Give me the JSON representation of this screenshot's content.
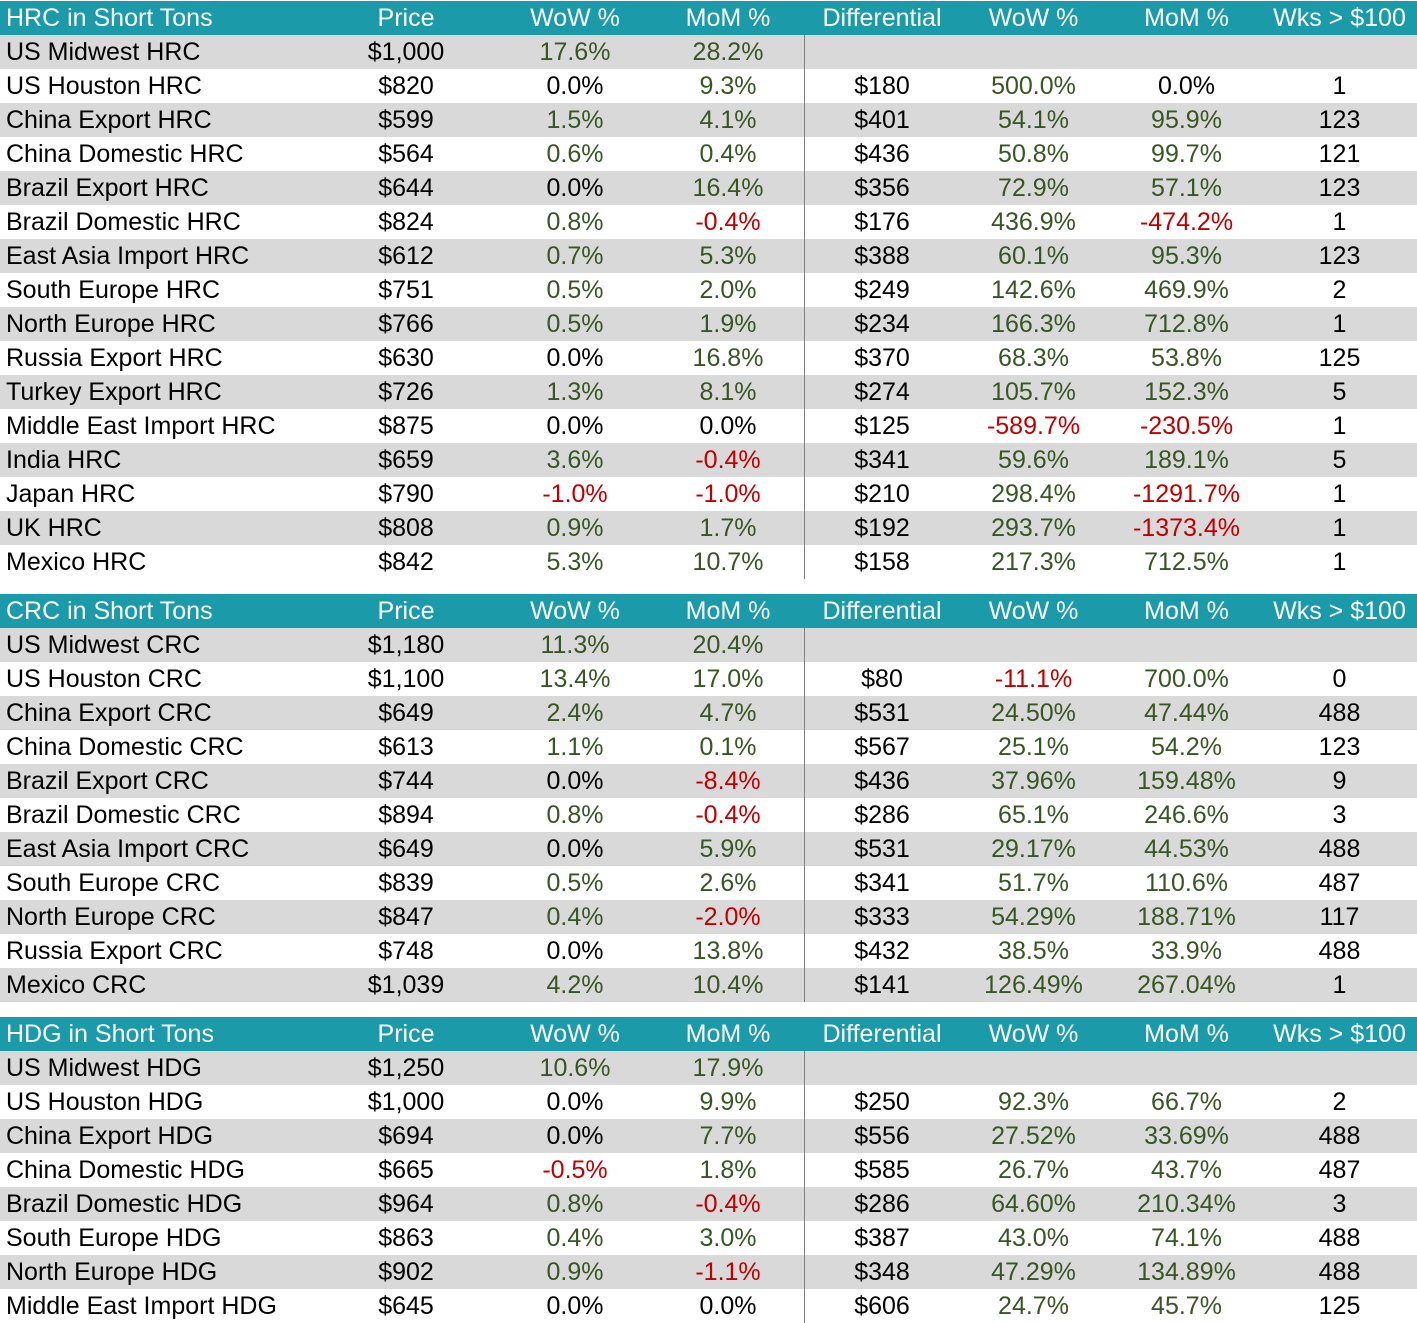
{
  "columns": [
    "Price",
    "WoW %",
    "MoM %",
    "Differential",
    "WoW %",
    "MoM %",
    "Wks > $100"
  ],
  "sections": [
    {
      "title": "HRC in Short Tons",
      "header": [
        "Price",
        "WoW %",
        "MoM %",
        "Differential",
        "WoW %",
        "MoM %",
        "Wks > $100"
      ],
      "rows": [
        {
          "name": "US Midwest HRC",
          "price": "$1,000",
          "wow": "17.6%",
          "mom": "28.2%",
          "diff": "",
          "dwow": "",
          "dmom": "",
          "wks": ""
        },
        {
          "name": "US Houston HRC",
          "price": "$820",
          "wow": "0.0%",
          "mom": "9.3%",
          "diff": "$180",
          "dwow": "500.0%",
          "dmom": "0.0%",
          "wks": "1"
        },
        {
          "name": "China Export HRC",
          "price": "$599",
          "wow": "1.5%",
          "mom": "4.1%",
          "diff": "$401",
          "dwow": "54.1%",
          "dmom": "95.9%",
          "wks": "123"
        },
        {
          "name": "China Domestic HRC",
          "price": "$564",
          "wow": "0.6%",
          "mom": "0.4%",
          "diff": "$436",
          "dwow": "50.8%",
          "dmom": "99.7%",
          "wks": "121"
        },
        {
          "name": "Brazil Export HRC",
          "price": "$644",
          "wow": "0.0%",
          "mom": "16.4%",
          "diff": "$356",
          "dwow": "72.9%",
          "dmom": "57.1%",
          "wks": "123"
        },
        {
          "name": "Brazil Domestic HRC",
          "price": "$824",
          "wow": "0.8%",
          "mom": "-0.4%",
          "diff": "$176",
          "dwow": "436.9%",
          "dmom": "-474.2%",
          "wks": "1"
        },
        {
          "name": "East Asia Import HRC",
          "price": "$612",
          "wow": "0.7%",
          "mom": "5.3%",
          "diff": "$388",
          "dwow": "60.1%",
          "dmom": "95.3%",
          "wks": "123"
        },
        {
          "name": "South Europe HRC",
          "price": "$751",
          "wow": "0.5%",
          "mom": "2.0%",
          "diff": "$249",
          "dwow": "142.6%",
          "dmom": "469.9%",
          "wks": "2"
        },
        {
          "name": "North Europe HRC",
          "price": "$766",
          "wow": "0.5%",
          "mom": "1.9%",
          "diff": "$234",
          "dwow": "166.3%",
          "dmom": "712.8%",
          "wks": "1"
        },
        {
          "name": "Russia Export HRC",
          "price": "$630",
          "wow": "0.0%",
          "mom": "16.8%",
          "diff": "$370",
          "dwow": "68.3%",
          "dmom": "53.8%",
          "wks": "125"
        },
        {
          "name": "Turkey Export HRC",
          "price": "$726",
          "wow": "1.3%",
          "mom": "8.1%",
          "diff": "$274",
          "dwow": "105.7%",
          "dmom": "152.3%",
          "wks": "5"
        },
        {
          "name": "Middle East Import HRC",
          "price": "$875",
          "wow": "0.0%",
          "mom": "0.0%",
          "diff": "$125",
          "dwow": "-589.7%",
          "dmom": "-230.5%",
          "wks": "1"
        },
        {
          "name": "India HRC",
          "price": "$659",
          "wow": "3.6%",
          "mom": "-0.4%",
          "diff": "$341",
          "dwow": "59.6%",
          "dmom": "189.1%",
          "wks": "5"
        },
        {
          "name": "Japan HRC",
          "price": "$790",
          "wow": "-1.0%",
          "mom": "-1.0%",
          "diff": "$210",
          "dwow": "298.4%",
          "dmom": "-1291.7%",
          "wks": "1"
        },
        {
          "name": "UK HRC",
          "price": "$808",
          "wow": "0.9%",
          "mom": "1.7%",
          "diff": "$192",
          "dwow": "293.7%",
          "dmom": "-1373.4%",
          "wks": "1"
        },
        {
          "name": "Mexico HRC",
          "price": "$842",
          "wow": "5.3%",
          "mom": "10.7%",
          "diff": "$158",
          "dwow": "217.3%",
          "dmom": "712.5%",
          "wks": "1"
        }
      ]
    },
    {
      "title": "CRC in Short Tons",
      "header": [
        "Price",
        "WoW %",
        "MoM %",
        "Differential",
        "WoW %",
        "MoM %",
        "Wks > $100"
      ],
      "rows": [
        {
          "name": "US Midwest CRC",
          "price": "$1,180",
          "wow": "11.3%",
          "mom": "20.4%",
          "diff": "",
          "dwow": "",
          "dmom": "",
          "wks": ""
        },
        {
          "name": "US Houston CRC",
          "price": "$1,100",
          "wow": "13.4%",
          "mom": "17.0%",
          "diff": "$80",
          "dwow": "-11.1%",
          "dmom": "700.0%",
          "wks": "0"
        },
        {
          "name": "China Export CRC",
          "price": "$649",
          "wow": "2.4%",
          "mom": "4.7%",
          "diff": "$531",
          "dwow": "24.50%",
          "dmom": "47.44%",
          "wks": "488"
        },
        {
          "name": "China Domestic CRC",
          "price": "$613",
          "wow": "1.1%",
          "mom": "0.1%",
          "diff": "$567",
          "dwow": "25.1%",
          "dmom": "54.2%",
          "wks": "123"
        },
        {
          "name": "Brazil Export CRC",
          "price": "$744",
          "wow": "0.0%",
          "mom": "-8.4%",
          "diff": "$436",
          "dwow": "37.96%",
          "dmom": "159.48%",
          "wks": "9"
        },
        {
          "name": "Brazil Domestic CRC",
          "price": "$894",
          "wow": "0.8%",
          "mom": "-0.4%",
          "diff": "$286",
          "dwow": "65.1%",
          "dmom": "246.6%",
          "wks": "3"
        },
        {
          "name": "East Asia Import CRC",
          "price": "$649",
          "wow": "0.0%",
          "mom": "5.9%",
          "diff": "$531",
          "dwow": "29.17%",
          "dmom": "44.53%",
          "wks": "488"
        },
        {
          "name": "South Europe CRC",
          "price": "$839",
          "wow": "0.5%",
          "mom": "2.6%",
          "diff": "$341",
          "dwow": "51.7%",
          "dmom": "110.6%",
          "wks": "487"
        },
        {
          "name": "North Europe CRC",
          "price": "$847",
          "wow": "0.4%",
          "mom": "-2.0%",
          "diff": "$333",
          "dwow": "54.29%",
          "dmom": "188.71%",
          "wks": "117"
        },
        {
          "name": "Russia Export CRC",
          "price": "$748",
          "wow": "0.0%",
          "mom": "13.8%",
          "diff": "$432",
          "dwow": "38.5%",
          "dmom": "33.9%",
          "wks": "488"
        },
        {
          "name": "Mexico CRC",
          "price": "$1,039",
          "wow": "4.2%",
          "mom": "10.4%",
          "diff": "$141",
          "dwow": "126.49%",
          "dmom": "267.04%",
          "wks": "1"
        }
      ]
    },
    {
      "title": "HDG in Short Tons",
      "header": [
        "Price",
        "WoW %",
        "MoM %",
        "Differential",
        "WoW %",
        "MoM %",
        "Wks > $100"
      ],
      "rows": [
        {
          "name": "US Midwest HDG",
          "price": "$1,250",
          "wow": "10.6%",
          "mom": "17.9%",
          "diff": "",
          "dwow": "",
          "dmom": "",
          "wks": ""
        },
        {
          "name": "US Houston HDG",
          "price": "$1,000",
          "wow": "0.0%",
          "mom": "9.9%",
          "diff": "$250",
          "dwow": "92.3%",
          "dmom": "66.7%",
          "wks": "2"
        },
        {
          "name": "China Export HDG",
          "price": "$694",
          "wow": "0.0%",
          "mom": "7.7%",
          "diff": "$556",
          "dwow": "27.52%",
          "dmom": "33.69%",
          "wks": "488"
        },
        {
          "name": "China Domestic HDG",
          "price": "$665",
          "wow": "-0.5%",
          "mom": "1.8%",
          "diff": "$585",
          "dwow": "26.7%",
          "dmom": "43.7%",
          "wks": "487"
        },
        {
          "name": "Brazil Domestic HDG",
          "price": "$964",
          "wow": "0.8%",
          "mom": "-0.4%",
          "diff": "$286",
          "dwow": "64.60%",
          "dmom": "210.34%",
          "wks": "3"
        },
        {
          "name": "South Europe HDG",
          "price": "$863",
          "wow": "0.4%",
          "mom": "3.0%",
          "diff": "$387",
          "dwow": "43.0%",
          "dmom": "74.1%",
          "wks": "488"
        },
        {
          "name": "North Europe HDG",
          "price": "$902",
          "wow": "0.9%",
          "mom": "-1.1%",
          "diff": "$348",
          "dwow": "47.29%",
          "dmom": "134.89%",
          "wks": "488"
        },
        {
          "name": "Middle East Import HDG",
          "price": "$645",
          "wow": "0.0%",
          "mom": "0.0%",
          "diff": "$606",
          "dwow": "24.7%",
          "dmom": "45.7%",
          "wks": "125"
        }
      ]
    }
  ],
  "colors": {
    "header_bg": "#1b9aaa",
    "header_text": "#ffffff",
    "shade_row": "#d9d9d9",
    "positive": "#375623",
    "negative": "#c00000",
    "neutral": "#000000"
  }
}
